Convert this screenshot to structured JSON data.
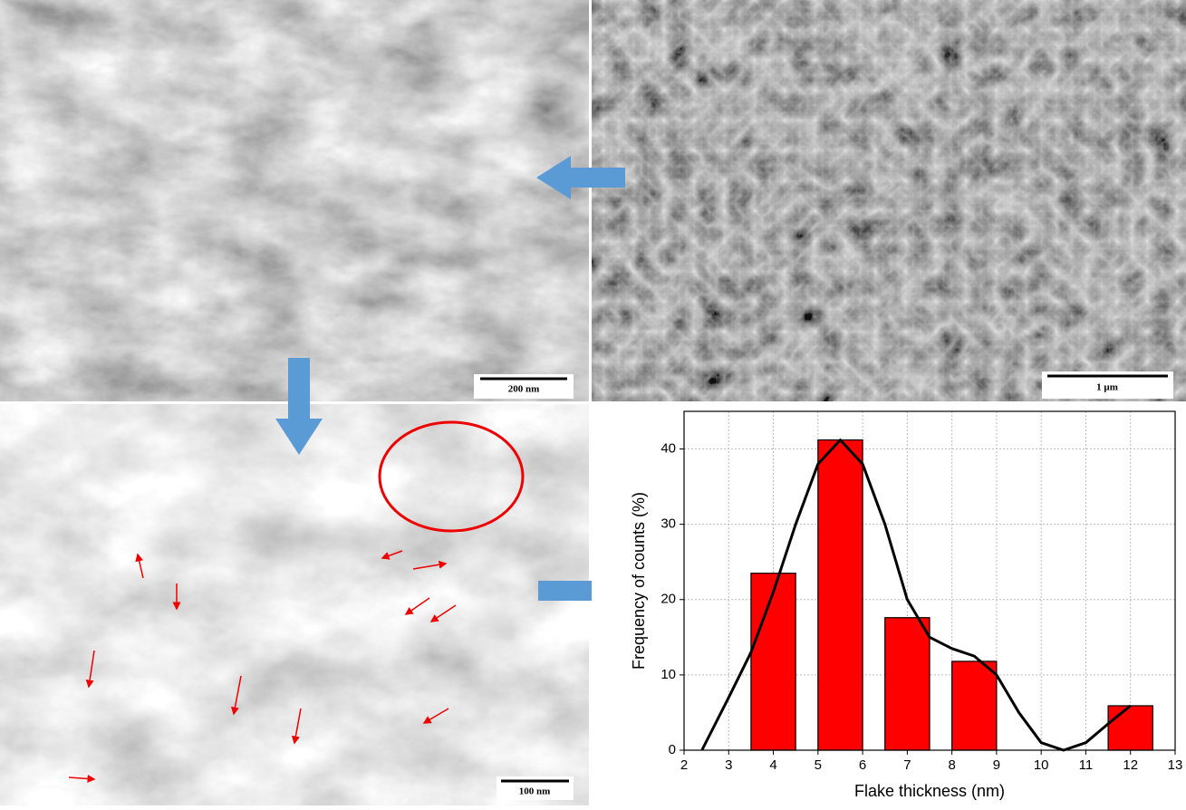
{
  "images": {
    "top_left_scale": "200 nm",
    "top_right_scale": "1 µm",
    "bottom_left_scale": "100 nm"
  },
  "chart_data": {
    "type": "bar",
    "x": [
      4,
      5.5,
      7,
      8.5,
      12
    ],
    "values": [
      23.5,
      41.2,
      17.6,
      11.8,
      5.9
    ],
    "color": "#ff0000",
    "line": {
      "x": [
        2.4,
        3,
        3.5,
        4,
        4.5,
        5,
        5.5,
        6,
        6.5,
        7,
        7.5,
        8,
        8.5,
        9,
        9.5,
        10,
        10.5,
        11,
        11.5,
        12
      ],
      "values": [
        0,
        7,
        13,
        21,
        30,
        38,
        41.2,
        38,
        30,
        20,
        15,
        13.5,
        12.5,
        10,
        5,
        1,
        0,
        1,
        3.5,
        5.9
      ],
      "color": "#000000"
    },
    "xlabel": "Flake thickness (nm)",
    "ylabel": "Frequency of counts (%)",
    "xlim": [
      2,
      13
    ],
    "xticks": [
      2,
      3,
      4,
      5,
      6,
      7,
      8,
      9,
      10,
      11,
      12,
      13
    ],
    "ylim": [
      0,
      45
    ],
    "yticks": [
      0,
      10,
      20,
      30,
      40
    ],
    "grid": true
  }
}
